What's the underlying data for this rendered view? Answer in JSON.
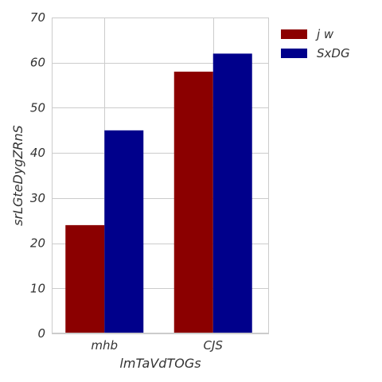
{
  "chart_data": {
    "type": "bar",
    "title": "",
    "xlabel": "lmTaVdTOGs",
    "ylabel": "srLGteDygZRnS",
    "categories": [
      "mhb",
      "CJS"
    ],
    "series": [
      {
        "name": "j w",
        "color": "#8b0000",
        "values": [
          24,
          58
        ]
      },
      {
        "name": "SxDG",
        "color": "#00008b",
        "values": [
          45,
          62
        ]
      }
    ],
    "ylim": [
      0,
      70
    ],
    "yticks": [
      0,
      10,
      20,
      30,
      40,
      50,
      60,
      70
    ],
    "grid": true,
    "legend_position": "outside-top-right"
  }
}
